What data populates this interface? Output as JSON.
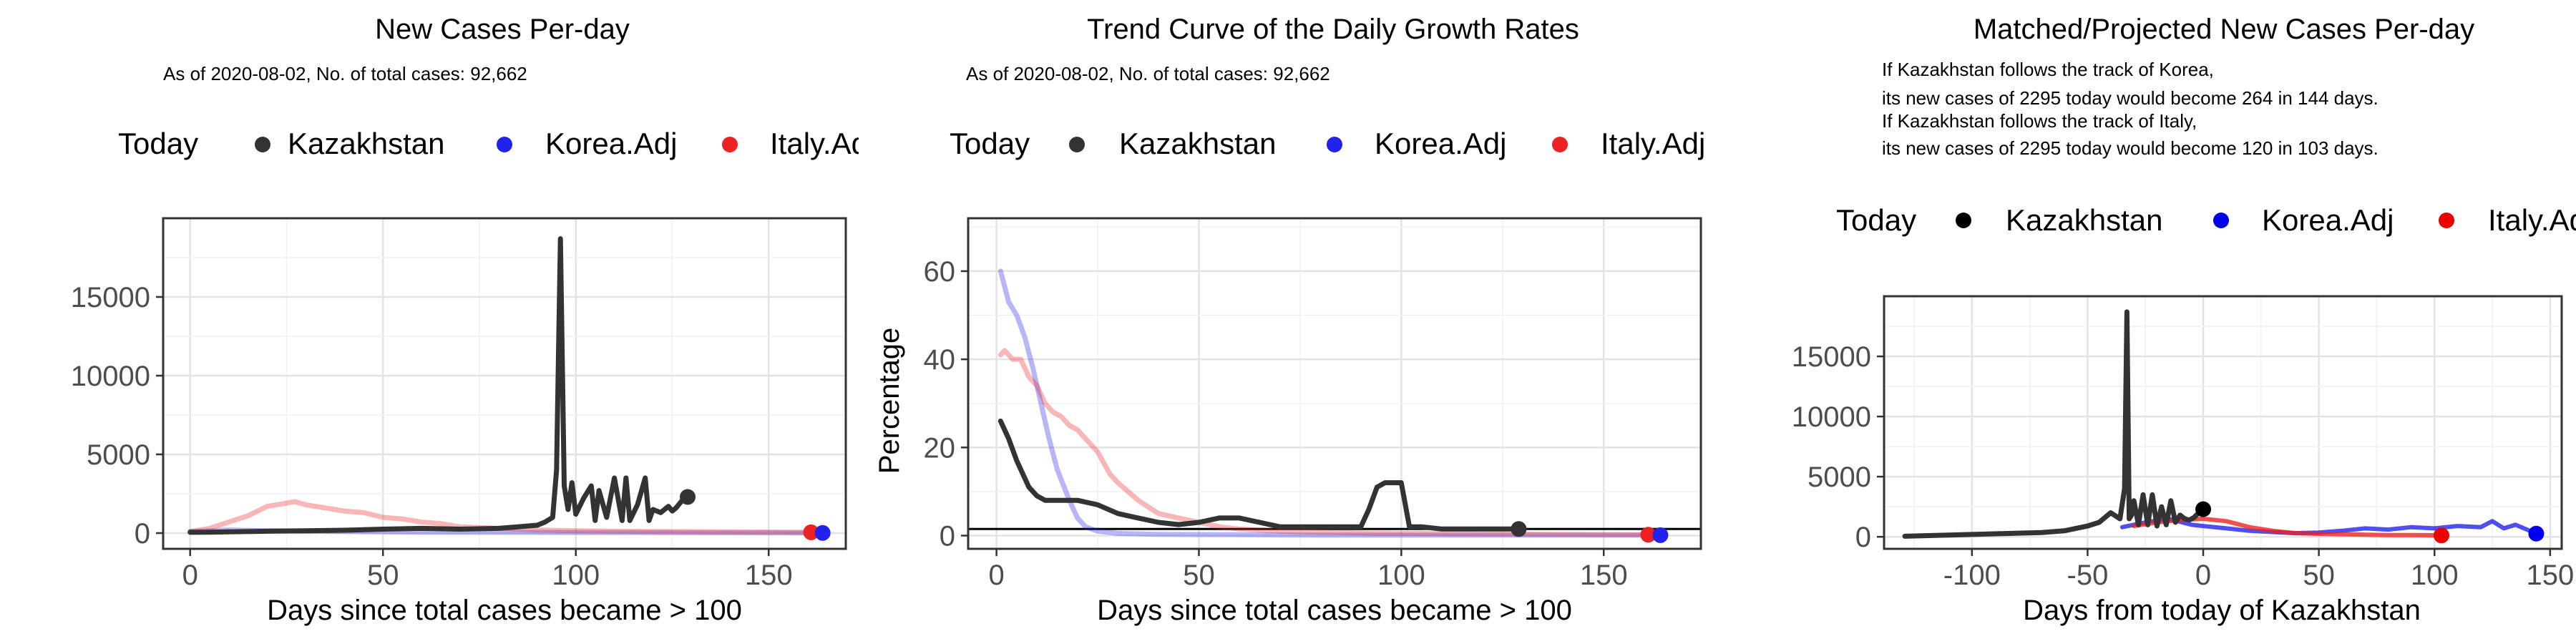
{
  "chart_data": [
    {
      "type": "line",
      "title": "New Cases Per-day",
      "subtitle": "As of 2020-08-02, No. of total cases: 92,662",
      "xlabel": "Days since total cases became > 100",
      "ylabel": "",
      "xlim": [
        -7,
        170
      ],
      "ylim": [
        -1000,
        20000
      ],
      "xticks": [
        0,
        50,
        100,
        150
      ],
      "yticks": [
        0,
        5000,
        10000,
        15000
      ],
      "grid": true,
      "legend": {
        "position": "top",
        "title": "Today",
        "entries": [
          {
            "label": "Kazakhstan",
            "color": "#333333"
          },
          {
            "label": "Korea.Adj",
            "color": "#2222ee"
          },
          {
            "label": "Italy.Adj",
            "color": "#ee2222"
          }
        ]
      },
      "series": [
        {
          "name": "Kazakhstan",
          "color": "#333333",
          "x": [
            0,
            5,
            10,
            20,
            30,
            40,
            50,
            60,
            70,
            80,
            85,
            90,
            92,
            94,
            95,
            96,
            97,
            98,
            99,
            100,
            102,
            104,
            105,
            106,
            108,
            110,
            112,
            113,
            114,
            116,
            118,
            119,
            120,
            122,
            124,
            125,
            126,
            128,
            129
          ],
          "y": [
            50,
            60,
            80,
            120,
            150,
            180,
            250,
            300,
            250,
            300,
            400,
            500,
            700,
            1000,
            4000,
            18700,
            3000,
            1500,
            3200,
            1200,
            2200,
            3000,
            800,
            2700,
            1000,
            3500,
            800,
            3500,
            800,
            1800,
            3500,
            800,
            1500,
            1300,
            1700,
            1400,
            1600,
            2200,
            2295
          ]
        },
        {
          "name": "Korea.Adj",
          "color": "#2222ee",
          "x": [
            0,
            10,
            20,
            30,
            40,
            50,
            60,
            80,
            100,
            120,
            140,
            164
          ],
          "y": [
            100,
            200,
            150,
            120,
            100,
            80,
            60,
            50,
            40,
            30,
            20,
            10
          ]
        },
        {
          "name": "Italy.Adj",
          "color": "#ee2222",
          "x": [
            0,
            5,
            10,
            15,
            20,
            25,
            27,
            30,
            35,
            40,
            45,
            50,
            55,
            60,
            65,
            70,
            80,
            90,
            100,
            120,
            140,
            161
          ],
          "y": [
            100,
            300,
            700,
            1100,
            1700,
            1900,
            2000,
            1800,
            1600,
            1400,
            1300,
            1000,
            900,
            700,
            600,
            400,
            300,
            200,
            150,
            100,
            80,
            50
          ]
        }
      ],
      "today_points": [
        {
          "name": "Kazakhstan",
          "x": 129,
          "y": 2295
        },
        {
          "name": "Italy.Adj",
          "x": 161,
          "y": 50
        },
        {
          "name": "Korea.Adj",
          "x": 164,
          "y": 10
        }
      ]
    },
    {
      "type": "line",
      "title": "Trend Curve of the Daily Growth Rates",
      "subtitle": "As of 2020-08-02, No. of total cases: 92,662",
      "xlabel": "Days since total cases became > 100",
      "ylabel": "Percentage",
      "xlim": [
        -7,
        174
      ],
      "ylim": [
        -3,
        72
      ],
      "xticks": [
        0,
        50,
        100,
        150
      ],
      "yticks": [
        0,
        20,
        40,
        60
      ],
      "hline": 1.5,
      "grid": true,
      "legend": {
        "position": "top",
        "title": "Today",
        "entries": [
          {
            "label": "Kazakhstan",
            "color": "#333333"
          },
          {
            "label": "Korea.Adj",
            "color": "#2222ee"
          },
          {
            "label": "Italy.Adj",
            "color": "#ee2222"
          }
        ]
      },
      "series": [
        {
          "name": "Kazakhstan",
          "color": "#333333",
          "x": [
            1,
            3,
            5,
            8,
            10,
            12,
            15,
            20,
            25,
            30,
            35,
            40,
            45,
            50,
            55,
            60,
            65,
            70,
            75,
            80,
            85,
            90,
            92,
            94,
            96,
            98,
            100,
            102,
            105,
            110,
            115,
            120,
            125,
            129
          ],
          "y": [
            26,
            22,
            17,
            11,
            9,
            8,
            8,
            8,
            7,
            5,
            4,
            3,
            2.5,
            3,
            4,
            4,
            3,
            2,
            2,
            2,
            2,
            2,
            6,
            11,
            12,
            12,
            12,
            2,
            2,
            1.5,
            1.5,
            1.5,
            1.5,
            1.5
          ]
        },
        {
          "name": "Korea.Adj",
          "color": "#2222ee",
          "x": [
            1,
            3,
            5,
            7,
            9,
            11,
            13,
            15,
            18,
            20,
            22,
            25,
            30,
            40,
            60,
            80,
            100,
            120,
            140,
            164
          ],
          "y": [
            60,
            53,
            50,
            45,
            38,
            30,
            22,
            15,
            8,
            4,
            2,
            1,
            0.5,
            0.3,
            0.2,
            0.1,
            0.1,
            0.1,
            0.1,
            0.1
          ]
        },
        {
          "name": "Italy.Adj",
          "color": "#ee2222",
          "x": [
            1,
            2,
            4,
            6,
            8,
            10,
            12,
            14,
            16,
            18,
            20,
            22,
            25,
            28,
            30,
            35,
            40,
            45,
            50,
            55,
            60,
            70,
            80,
            90,
            100,
            120,
            140,
            161
          ],
          "y": [
            41,
            42,
            40,
            40,
            36,
            34,
            30,
            28,
            27,
            25,
            24,
            22,
            19,
            14,
            12,
            8,
            5,
            4,
            3,
            2,
            1.5,
            1,
            0.8,
            0.6,
            0.5,
            0.4,
            0.3,
            0.2
          ]
        }
      ],
      "today_points": [
        {
          "name": "Kazakhstan",
          "x": 129,
          "y": 1.5
        },
        {
          "name": "Italy.Adj",
          "x": 161,
          "y": 0.2
        },
        {
          "name": "Korea.Adj",
          "x": 164,
          "y": 0.1
        }
      ]
    },
    {
      "type": "line",
      "title": "Matched/Projected New Cases Per-day",
      "subtitle_lines": [
        "If Kazakhstan follows the track of Korea,",
        "its new cases of 2295 today would become 264 in 144 days.",
        "If Kazakhstan follows the track of Italy,",
        "its new cases of 2295 today would become 120 in 103 days."
      ],
      "xlabel": "Days from today of Kazakhstan",
      "ylabel": "",
      "xlim": [
        -138,
        155
      ],
      "ylim": [
        -1000,
        20000
      ],
      "xticks": [
        -100,
        -50,
        0,
        50,
        100,
        150
      ],
      "yticks": [
        0,
        5000,
        10000,
        15000
      ],
      "grid": true,
      "legend": {
        "position": "top",
        "title": "Today",
        "entries": [
          {
            "label": "Kazakhstan",
            "color": "#000000"
          },
          {
            "label": "Korea.Adj",
            "color": "#0000ee"
          },
          {
            "label": "Italy.Adj",
            "color": "#ee0000"
          }
        ]
      },
      "series": [
        {
          "name": "Kazakhstan",
          "color": "#333333",
          "x": [
            -129,
            -110,
            -90,
            -80,
            -70,
            -60,
            -50,
            -45,
            -40,
            -36,
            -34,
            -33,
            -32,
            -31,
            -30,
            -28,
            -26,
            -24,
            -22,
            -20,
            -18,
            -16,
            -14,
            -12,
            -10,
            -8,
            -6,
            -4,
            -2,
            0
          ],
          "y": [
            50,
            150,
            250,
            300,
            350,
            500,
            900,
            1200,
            2000,
            1500,
            4000,
            18700,
            1500,
            1800,
            3000,
            1000,
            3500,
            1000,
            3500,
            900,
            2500,
            1000,
            3000,
            1200,
            1800,
            1500,
            1400,
            1600,
            2000,
            2295
          ]
        },
        {
          "name": "Korea.Adj",
          "color": "#2222ee",
          "x": [
            -35,
            -25,
            -15,
            -5,
            0,
            10,
            20,
            30,
            40,
            50,
            60,
            70,
            80,
            90,
            100,
            110,
            120,
            125,
            130,
            135,
            140,
            144
          ],
          "y": [
            800,
            1200,
            1500,
            1000,
            900,
            700,
            500,
            400,
            300,
            350,
            500,
            700,
            600,
            800,
            700,
            900,
            800,
            1300,
            700,
            1000,
            600,
            264
          ]
        },
        {
          "name": "Italy.Adj",
          "color": "#ee2222",
          "x": [
            -30,
            -20,
            -10,
            0,
            10,
            20,
            30,
            40,
            50,
            60,
            70,
            80,
            90,
            100,
            103
          ],
          "y": [
            900,
            1200,
            1400,
            1500,
            1300,
            800,
            500,
            300,
            250,
            200,
            180,
            150,
            140,
            130,
            120
          ]
        }
      ],
      "today_points": [
        {
          "name": "Kazakhstan",
          "x": 0,
          "y": 2295
        },
        {
          "name": "Italy.Adj",
          "x": 103,
          "y": 120
        },
        {
          "name": "Korea.Adj",
          "x": 144,
          "y": 264
        }
      ]
    }
  ]
}
